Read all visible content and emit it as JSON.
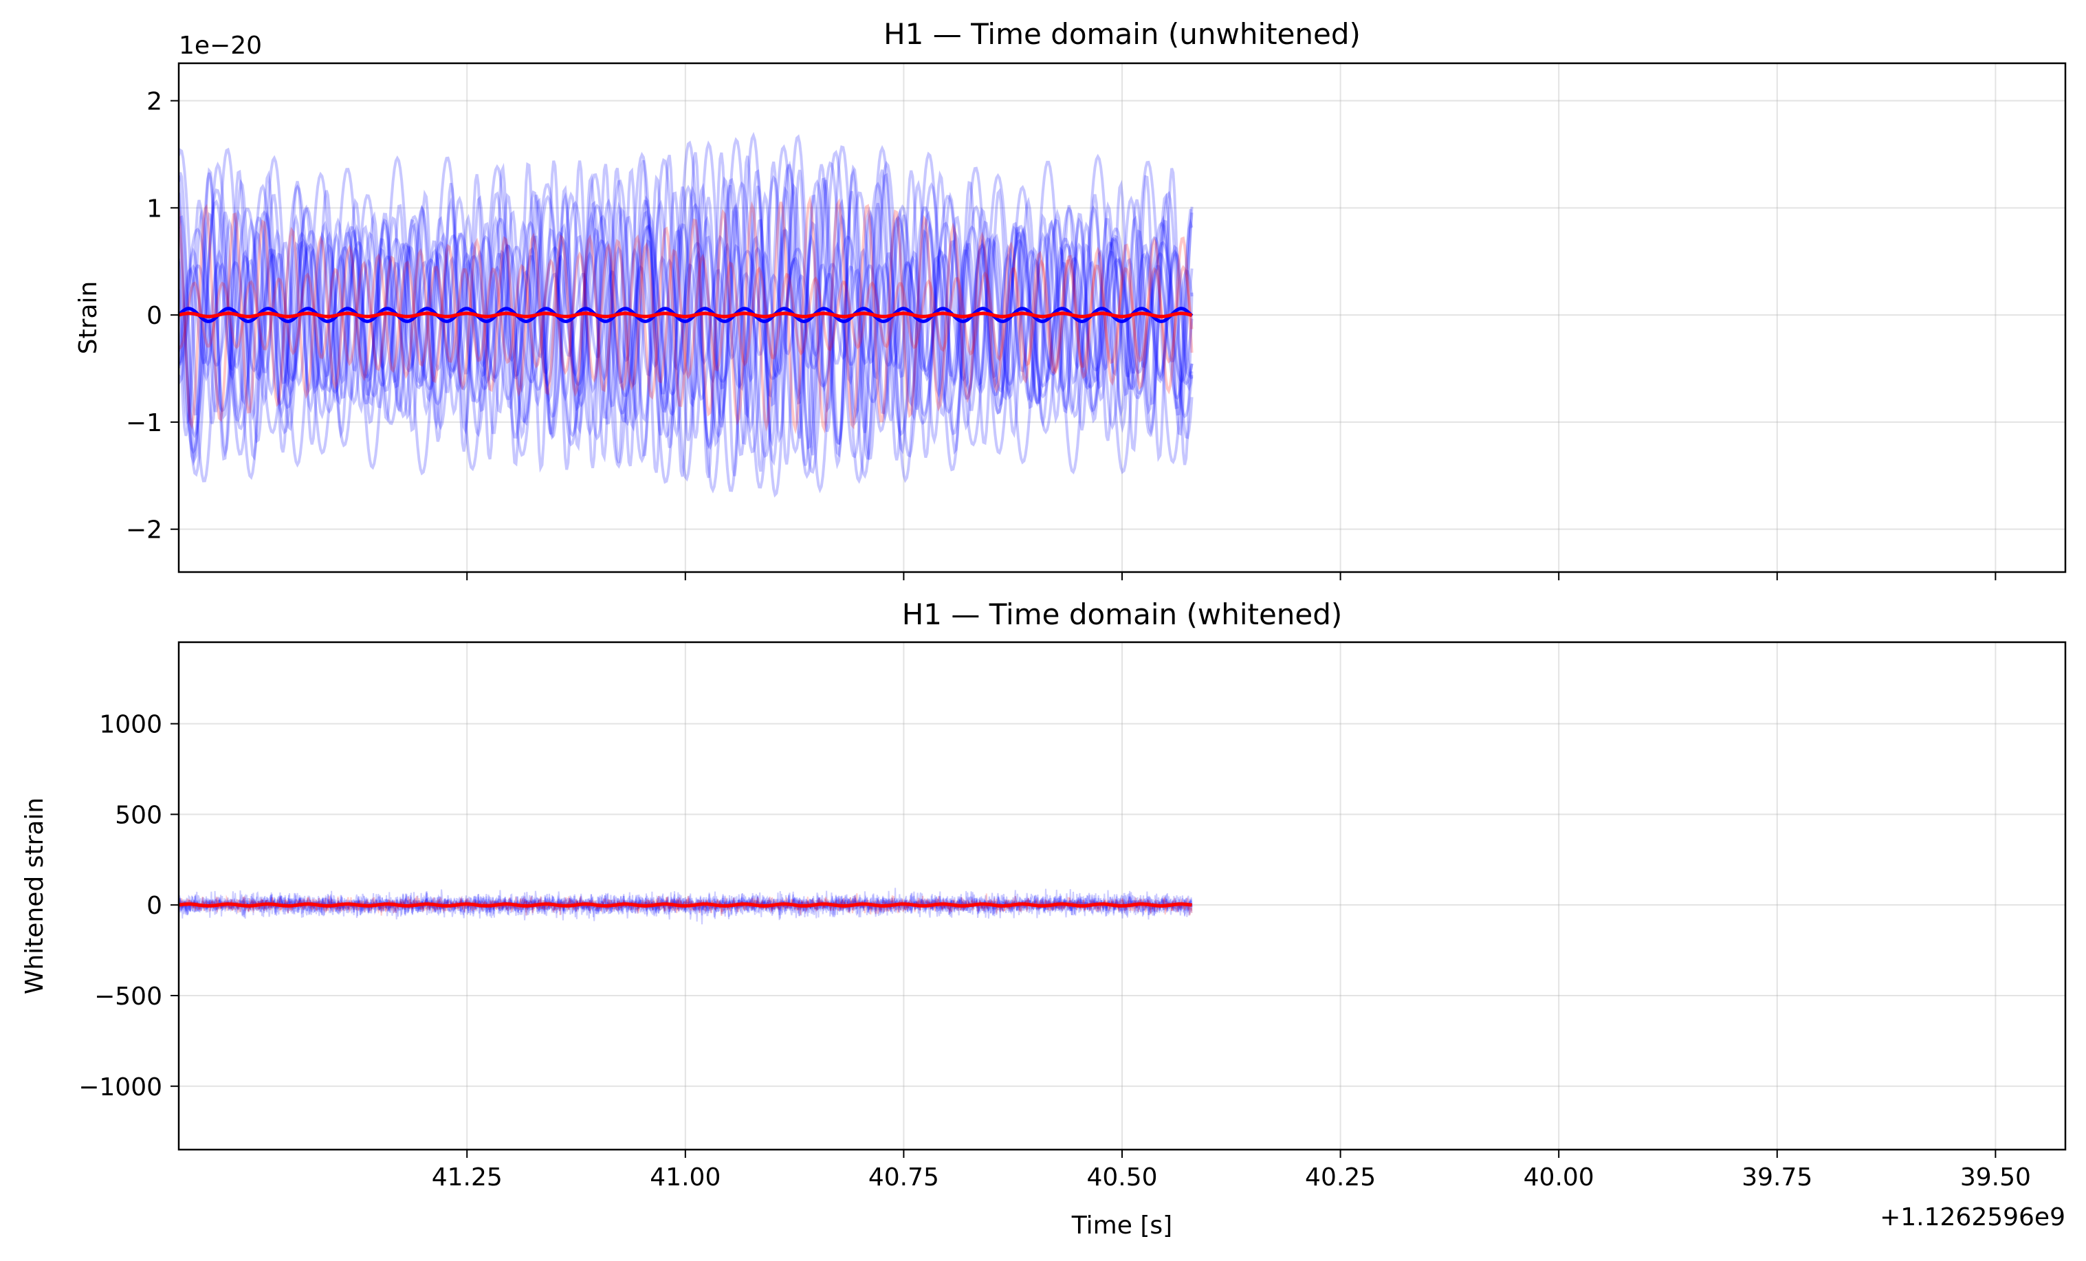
{
  "chart_data": [
    {
      "type": "line",
      "title": "H1 — Time domain (unwhitened)",
      "xlabel": "",
      "ylabel": "Strain",
      "y_scale_label": "1e−20",
      "y_scale": 1e-20,
      "xlim": [
        41.58,
        39.42
      ],
      "ylim": [
        -2.4,
        2.35
      ],
      "data_xrange": [
        41.58,
        40.42
      ],
      "x_inverted": true,
      "xticks": [
        41.25,
        41.0,
        40.75,
        40.5,
        40.25,
        40.0,
        39.75,
        39.5
      ],
      "xtick_labels": [],
      "yticks": [
        -2,
        -1,
        0,
        1,
        2
      ],
      "ytick_labels": [
        "−2",
        "−1",
        "0",
        "1",
        "2"
      ],
      "grid": true,
      "legend": "none",
      "series": [
        {
          "color": "#0000ff",
          "alpha": 0.22,
          "style": "oscillating",
          "count": 14,
          "amplitude": 1.6
        },
        {
          "color": "#ff0000",
          "alpha": 0.22,
          "style": "oscillating",
          "count": 2,
          "amplitude": 1.3
        },
        {
          "color": "#0000ff",
          "alpha": 1.0,
          "style": "mean",
          "amplitude": 0.06
        },
        {
          "color": "#ff0000",
          "alpha": 1.0,
          "style": "mean",
          "amplitude": 0.015
        }
      ]
    },
    {
      "type": "line",
      "title": "H1 — Time domain (whitened)",
      "xlabel": "Time [s]",
      "ylabel": "Whitened strain",
      "x_offset_label": "+1.1262596e9",
      "xlim": [
        41.58,
        39.42
      ],
      "ylim": [
        -1350,
        1450
      ],
      "data_xrange": [
        41.58,
        40.42
      ],
      "x_inverted": true,
      "xticks": [
        41.25,
        41.0,
        40.75,
        40.5,
        40.25,
        40.0,
        39.75,
        39.5
      ],
      "xtick_labels": [
        "41.25",
        "41.00",
        "40.75",
        "40.50",
        "40.25",
        "40.00",
        "39.75",
        "39.50"
      ],
      "yticks": [
        -1000,
        -500,
        0,
        500,
        1000
      ],
      "ytick_labels": [
        "−1000",
        "−500",
        "0",
        "500",
        "1000"
      ],
      "grid": true,
      "legend": "none",
      "series": [
        {
          "color": "#0000ff",
          "alpha": 0.2,
          "style": "noise",
          "count": 6,
          "amplitude": 50
        },
        {
          "color": "#ff0000",
          "alpha": 0.2,
          "style": "noise",
          "count": 2,
          "amplitude": 40
        },
        {
          "color": "#ff0000",
          "alpha": 1.0,
          "style": "mean",
          "amplitude": 5
        }
      ]
    }
  ]
}
